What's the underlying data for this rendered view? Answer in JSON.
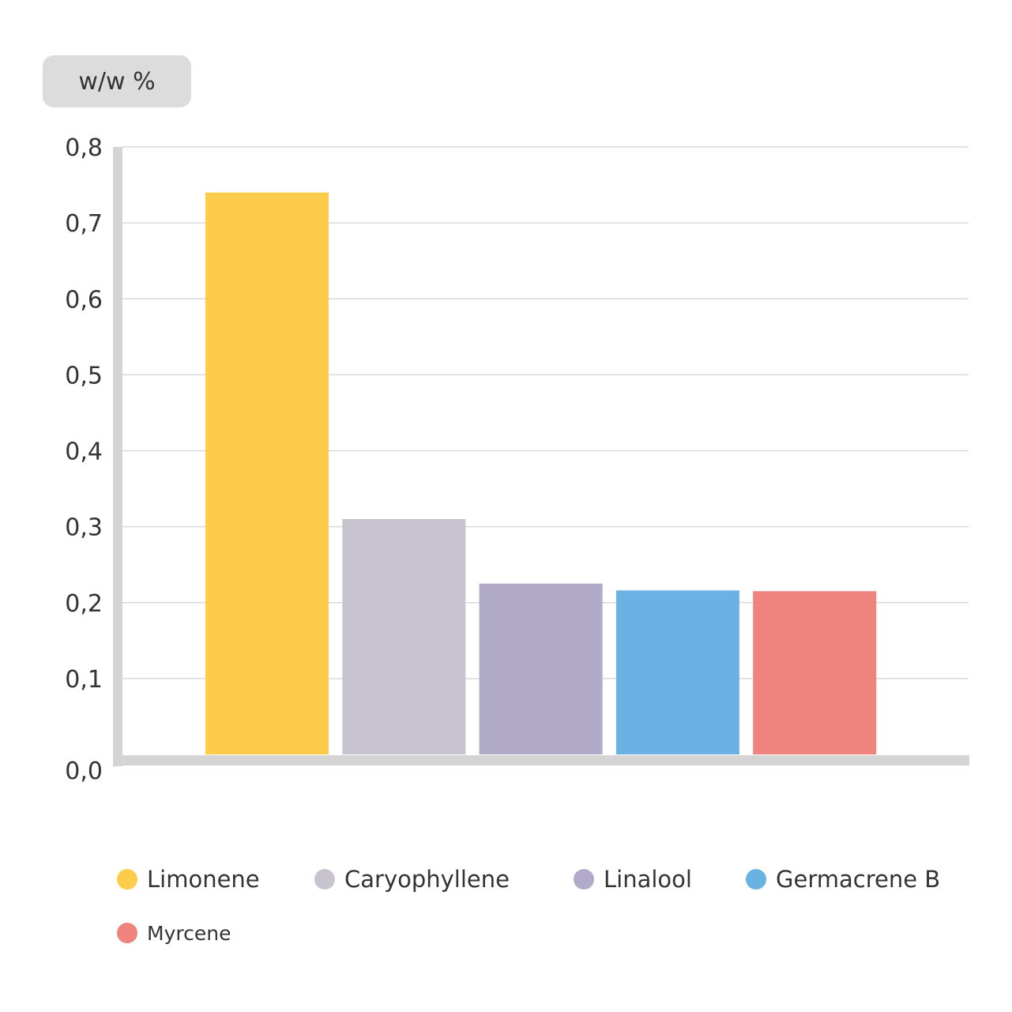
{
  "chart_data": {
    "type": "bar",
    "ylabel": "w/w %",
    "xlabel": "",
    "ylim": [
      0,
      0.8
    ],
    "yticks": [
      "0,0",
      "0,1",
      "0,2",
      "0,3",
      "0,4",
      "0,5",
      "0,6",
      "0,7",
      "0,8"
    ],
    "categories": [
      "Limonene",
      "Caryophyllene",
      "Linalool",
      "Germacrene B",
      "Myrcene"
    ],
    "values": [
      0.74,
      0.31,
      0.225,
      0.216,
      0.215
    ],
    "colors": [
      "#fccc4a",
      "#c8c4cf",
      "#b1abc9",
      "#6ab2e3",
      "#f0837e"
    ],
    "grid": true,
    "legend_position": "bottom"
  }
}
